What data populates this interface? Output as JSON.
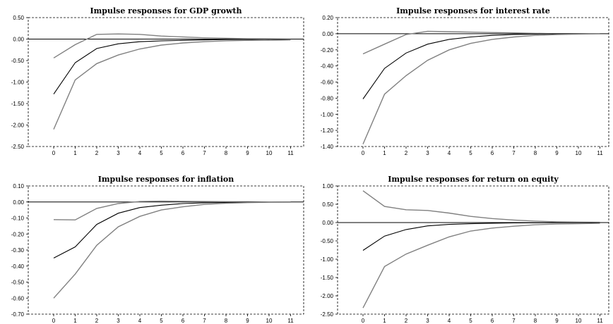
{
  "chart_data": [
    {
      "type": "line",
      "title": "Impulse responses for GDP growth",
      "x": [
        0,
        1,
        2,
        3,
        4,
        5,
        6,
        7,
        8,
        9,
        10,
        11
      ],
      "ylim": [
        -2.5,
        0.5
      ],
      "yticks": [
        "0.50",
        "0.00",
        "-0.50",
        "-1.00",
        "-1.50",
        "-2.00",
        "-2.50"
      ],
      "xticks": [
        "0",
        "1",
        "2",
        "3",
        "4",
        "5",
        "6",
        "7",
        "8",
        "9",
        "10",
        "11"
      ],
      "series": [
        {
          "color": "#808080",
          "values": [
            -0.44,
            -0.13,
            0.11,
            0.12,
            0.11,
            0.07,
            0.05,
            0.03,
            0.02,
            0.01,
            0.0,
            0.0
          ]
        },
        {
          "color": "#000000",
          "values": [
            -1.28,
            -0.55,
            -0.22,
            -0.11,
            -0.06,
            -0.04,
            -0.03,
            -0.02,
            -0.01,
            -0.01,
            0.0,
            -0.01
          ]
        },
        {
          "color": "#808080",
          "values": [
            -2.1,
            -0.95,
            -0.57,
            -0.37,
            -0.23,
            -0.14,
            -0.09,
            -0.06,
            -0.04,
            -0.03,
            -0.03,
            -0.02
          ]
        }
      ]
    },
    {
      "type": "line",
      "title": "Impulse responses for interest rate",
      "x": [
        0,
        1,
        2,
        3,
        4,
        5,
        6,
        7,
        8,
        9,
        10,
        11
      ],
      "ylim": [
        -1.4,
        0.2
      ],
      "yticks": [
        "0.20",
        "0.00",
        "-0.20",
        "-0.40",
        "-0.60",
        "-0.80",
        "-1.00",
        "-1.20",
        "-1.40"
      ],
      "xticks": [
        "0",
        "1",
        "2",
        "3",
        "4",
        "5",
        "6",
        "7",
        "8",
        "9",
        "10",
        "11"
      ],
      "series": [
        {
          "color": "#808080",
          "values": [
            -0.25,
            -0.13,
            -0.01,
            0.03,
            0.025,
            0.02,
            0.015,
            0.01,
            0.005,
            0.0,
            0.0,
            0.0
          ]
        },
        {
          "color": "#000000",
          "values": [
            -0.81,
            -0.43,
            -0.24,
            -0.13,
            -0.07,
            -0.04,
            -0.02,
            -0.01,
            -0.005,
            0.0,
            0.0,
            0.0
          ]
        },
        {
          "color": "#808080",
          "values": [
            -1.37,
            -0.75,
            -0.52,
            -0.33,
            -0.2,
            -0.12,
            -0.07,
            -0.04,
            -0.02,
            -0.01,
            -0.005,
            0.0
          ]
        }
      ]
    },
    {
      "type": "line",
      "title": "Impulse responses for inflation",
      "x": [
        0,
        1,
        2,
        3,
        4,
        5,
        6,
        7,
        8,
        9,
        10,
        11
      ],
      "ylim": [
        -0.7,
        0.1
      ],
      "yticks": [
        "0.10",
        "0.00",
        "-0.10",
        "-0.20",
        "-0.30",
        "-0.40",
        "-0.50",
        "-0.60",
        "-0.70"
      ],
      "xticks": [
        "0",
        "1",
        "2",
        "3",
        "4",
        "5",
        "6",
        "7",
        "8",
        "9",
        "10",
        "11"
      ],
      "series": [
        {
          "color": "#808080",
          "values": [
            -0.11,
            -0.112,
            -0.04,
            -0.01,
            0.003,
            0.005,
            0.004,
            0.003,
            0.002,
            0.001,
            0.0,
            0.0
          ]
        },
        {
          "color": "#000000",
          "values": [
            -0.35,
            -0.28,
            -0.14,
            -0.07,
            -0.035,
            -0.02,
            -0.01,
            -0.005,
            -0.003,
            -0.002,
            -0.001,
            0.0
          ]
        },
        {
          "color": "#808080",
          "values": [
            -0.6,
            -0.45,
            -0.27,
            -0.155,
            -0.09,
            -0.05,
            -0.03,
            -0.015,
            -0.008,
            -0.004,
            -0.002,
            -0.001
          ]
        }
      ]
    },
    {
      "type": "line",
      "title": "Impulse responses for return on equity",
      "x": [
        0,
        1,
        2,
        3,
        4,
        5,
        6,
        7,
        8,
        9,
        10,
        11
      ],
      "ylim": [
        -2.5,
        1.0
      ],
      "yticks": [
        "1.00",
        "0.50",
        "0.00",
        "-0.50",
        "-1.00",
        "-1.50",
        "-2.00",
        "-2.50"
      ],
      "xticks": [
        "0",
        "1",
        "2",
        "3",
        "4",
        "5",
        "6",
        "7",
        "8",
        "9",
        "10",
        "11"
      ],
      "series": [
        {
          "color": "#808080",
          "values": [
            0.87,
            0.44,
            0.35,
            0.33,
            0.26,
            0.17,
            0.11,
            0.07,
            0.04,
            0.02,
            0.01,
            0.005
          ]
        },
        {
          "color": "#000000",
          "values": [
            -0.76,
            -0.37,
            -0.19,
            -0.09,
            -0.05,
            -0.03,
            -0.02,
            -0.01,
            -0.005,
            -0.003,
            -0.002,
            -0.001
          ]
        },
        {
          "color": "#808080",
          "values": [
            -2.33,
            -1.2,
            -0.86,
            -0.62,
            -0.39,
            -0.23,
            -0.15,
            -0.1,
            -0.06,
            -0.04,
            -0.03,
            -0.02
          ]
        }
      ]
    }
  ]
}
